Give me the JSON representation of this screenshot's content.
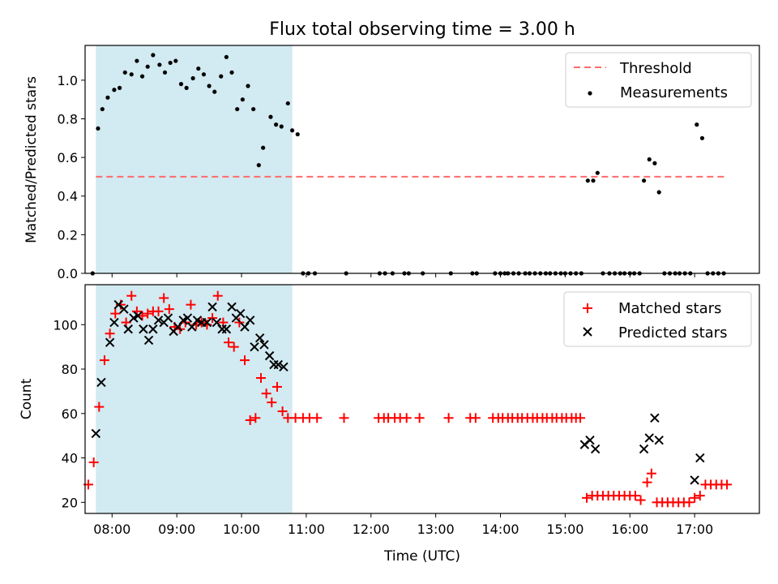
{
  "figure": {
    "title": "Flux total observing time = 3.00 h",
    "xlabel": "Time (UTC)",
    "x_ticks": [
      "08:00",
      "09:00",
      "10:00",
      "11:00",
      "12:00",
      "13:00",
      "14:00",
      "15:00",
      "16:00",
      "17:00"
    ]
  },
  "chart_data": [
    {
      "type": "scatter",
      "ylabel": "Matched/Predicted stars",
      "xlim": [
        "07:35",
        "18:00"
      ],
      "ylim": [
        0,
        1.18
      ],
      "y_ticks": [
        "0.0",
        "0.2",
        "0.4",
        "0.6",
        "0.8",
        "1.0"
      ],
      "shaded_region": {
        "x0": "07:45",
        "x1": "10:47",
        "color": "#add8e6"
      },
      "threshold": {
        "name": "Threshold",
        "y": 0.5,
        "x0": "07:45",
        "x1": "17:30",
        "color": "#ff6b6b",
        "style": "dashed"
      },
      "legend": {
        "placement": "top-right",
        "entries": [
          "Threshold",
          "Measurements"
        ]
      },
      "series": [
        {
          "name": "Measurements",
          "marker": "dot",
          "color": "#000000",
          "points": [
            [
              "07:42",
              0.0
            ],
            [
              "07:47",
              0.75
            ],
            [
              "07:51",
              0.85
            ],
            [
              "07:56",
              0.91
            ],
            [
              "08:02",
              0.95
            ],
            [
              "08:07",
              0.96
            ],
            [
              "08:12",
              1.04
            ],
            [
              "08:18",
              1.03
            ],
            [
              "08:23",
              1.1
            ],
            [
              "08:28",
              1.02
            ],
            [
              "08:33",
              1.07
            ],
            [
              "08:38",
              1.13
            ],
            [
              "08:44",
              1.08
            ],
            [
              "08:49",
              1.04
            ],
            [
              "08:54",
              1.09
            ],
            [
              "08:59",
              1.1
            ],
            [
              "09:04",
              0.98
            ],
            [
              "09:09",
              0.96
            ],
            [
              "09:15",
              1.01
            ],
            [
              "09:20",
              1.06
            ],
            [
              "09:25",
              1.03
            ],
            [
              "09:30",
              0.97
            ],
            [
              "09:35",
              0.94
            ],
            [
              "09:41",
              1.02
            ],
            [
              "09:46",
              1.12
            ],
            [
              "09:51",
              1.04
            ],
            [
              "09:56",
              0.85
            ],
            [
              "10:01",
              0.9
            ],
            [
              "10:06",
              0.97
            ],
            [
              "10:11",
              0.85
            ],
            [
              "10:16",
              0.56
            ],
            [
              "10:20",
              0.65
            ],
            [
              "10:27",
              0.81
            ],
            [
              "10:32",
              0.77
            ],
            [
              "10:37",
              0.76
            ],
            [
              "10:43",
              0.88
            ],
            [
              "10:47",
              0.74
            ],
            [
              "10:52",
              0.72
            ],
            [
              "10:57",
              0.0
            ],
            [
              "11:02",
              0.0
            ],
            [
              "11:08",
              0.0
            ],
            [
              "11:37",
              0.0
            ],
            [
              "12:08",
              0.0
            ],
            [
              "12:13",
              0.0
            ],
            [
              "12:20",
              0.0
            ],
            [
              "12:31",
              0.0
            ],
            [
              "12:35",
              0.0
            ],
            [
              "12:48",
              0.0
            ],
            [
              "13:14",
              0.0
            ],
            [
              "13:34",
              0.0
            ],
            [
              "13:38",
              0.0
            ],
            [
              "13:55",
              0.0
            ],
            [
              "14:00",
              0.0
            ],
            [
              "14:04",
              0.0
            ],
            [
              "14:07",
              0.0
            ],
            [
              "14:12",
              0.0
            ],
            [
              "14:17",
              0.0
            ],
            [
              "14:23",
              0.0
            ],
            [
              "14:27",
              0.0
            ],
            [
              "14:32",
              0.0
            ],
            [
              "14:37",
              0.0
            ],
            [
              "14:42",
              0.0
            ],
            [
              "14:46",
              0.0
            ],
            [
              "14:51",
              0.0
            ],
            [
              "14:56",
              0.0
            ],
            [
              "15:00",
              0.0
            ],
            [
              "15:05",
              0.0
            ],
            [
              "15:10",
              0.0
            ],
            [
              "15:15",
              0.0
            ],
            [
              "15:21",
              0.48
            ],
            [
              "15:26",
              0.48
            ],
            [
              "15:30",
              0.52
            ],
            [
              "15:35",
              0.0
            ],
            [
              "15:41",
              0.0
            ],
            [
              "15:46",
              0.0
            ],
            [
              "15:51",
              0.0
            ],
            [
              "15:55",
              0.0
            ],
            [
              "16:00",
              0.0
            ],
            [
              "16:04",
              0.0
            ],
            [
              "16:09",
              0.0
            ],
            [
              "16:13",
              0.48
            ],
            [
              "16:18",
              0.59
            ],
            [
              "16:23",
              0.57
            ],
            [
              "16:27",
              0.42
            ],
            [
              "16:32",
              0.0
            ],
            [
              "16:37",
              0.0
            ],
            [
              "16:42",
              0.0
            ],
            [
              "16:46",
              0.0
            ],
            [
              "16:51",
              0.0
            ],
            [
              "16:56",
              0.0
            ],
            [
              "17:02",
              0.77
            ],
            [
              "17:07",
              0.7
            ],
            [
              "17:12",
              0.0
            ],
            [
              "17:17",
              0.0
            ],
            [
              "17:22",
              0.0
            ],
            [
              "17:27",
              0.0
            ]
          ]
        }
      ]
    },
    {
      "type": "scatter",
      "ylabel": "Count",
      "xlabel": "Time (UTC)",
      "xlim": [
        "07:35",
        "18:00"
      ],
      "ylim": [
        15,
        118
      ],
      "y_ticks": [
        "20",
        "40",
        "60",
        "80",
        "100"
      ],
      "shaded_region": {
        "x0": "07:45",
        "x1": "10:47",
        "color": "#add8e6"
      },
      "legend": {
        "placement": "top-right",
        "entries": [
          "Matched stars",
          "Predicted stars"
        ]
      },
      "series": [
        {
          "name": "Matched stars",
          "marker": "plus",
          "color": "#ff0000",
          "points": [
            [
              "07:38",
              28
            ],
            [
              "07:43",
              38
            ],
            [
              "07:48",
              63
            ],
            [
              "07:53",
              84
            ],
            [
              "07:58",
              96
            ],
            [
              "08:03",
              105
            ],
            [
              "08:08",
              109
            ],
            [
              "08:13",
              101
            ],
            [
              "08:18",
              113
            ],
            [
              "08:23",
              106
            ],
            [
              "08:28",
              104
            ],
            [
              "08:33",
              105
            ],
            [
              "08:38",
              106
            ],
            [
              "08:43",
              106
            ],
            [
              "08:48",
              112
            ],
            [
              "08:53",
              107
            ],
            [
              "08:58",
              99
            ],
            [
              "09:03",
              98
            ],
            [
              "09:08",
              101
            ],
            [
              "09:13",
              109
            ],
            [
              "09:18",
              100
            ],
            [
              "09:23",
              101
            ],
            [
              "09:28",
              100
            ],
            [
              "09:33",
              103
            ],
            [
              "09:38",
              113
            ],
            [
              "09:43",
              101
            ],
            [
              "09:48",
              92
            ],
            [
              "09:53",
              90
            ],
            [
              "09:58",
              101
            ],
            [
              "10:03",
              84
            ],
            [
              "10:08",
              57
            ],
            [
              "10:13",
              58
            ],
            [
              "10:18",
              76
            ],
            [
              "10:23",
              69
            ],
            [
              "10:28",
              65
            ],
            [
              "10:33",
              72
            ],
            [
              "10:38",
              61
            ],
            [
              "10:43",
              58
            ],
            [
              "10:50",
              58
            ],
            [
              "10:57",
              58
            ],
            [
              "11:03",
              58
            ],
            [
              "11:10",
              58
            ],
            [
              "11:35",
              58
            ],
            [
              "12:07",
              58
            ],
            [
              "12:12",
              58
            ],
            [
              "12:16",
              58
            ],
            [
              "12:22",
              58
            ],
            [
              "12:27",
              58
            ],
            [
              "12:33",
              58
            ],
            [
              "12:45",
              58
            ],
            [
              "13:12",
              58
            ],
            [
              "13:32",
              58
            ],
            [
              "13:37",
              58
            ],
            [
              "13:53",
              58
            ],
            [
              "13:58",
              58
            ],
            [
              "14:02",
              58
            ],
            [
              "14:07",
              58
            ],
            [
              "14:11",
              58
            ],
            [
              "14:16",
              58
            ],
            [
              "14:20",
              58
            ],
            [
              "14:25",
              58
            ],
            [
              "14:30",
              58
            ],
            [
              "14:34",
              58
            ],
            [
              "14:39",
              58
            ],
            [
              "14:43",
              58
            ],
            [
              "14:48",
              58
            ],
            [
              "14:52",
              58
            ],
            [
              "14:57",
              58
            ],
            [
              "15:01",
              58
            ],
            [
              "15:06",
              58
            ],
            [
              "15:10",
              58
            ],
            [
              "15:14",
              58
            ],
            [
              "15:20",
              22
            ],
            [
              "15:25",
              23
            ],
            [
              "15:30",
              23
            ],
            [
              "15:35",
              23
            ],
            [
              "15:40",
              23
            ],
            [
              "15:45",
              23
            ],
            [
              "15:50",
              23
            ],
            [
              "15:55",
              23
            ],
            [
              "16:00",
              23
            ],
            [
              "16:05",
              23
            ],
            [
              "16:10",
              21
            ],
            [
              "16:16",
              29
            ],
            [
              "16:20",
              33
            ],
            [
              "16:25",
              20
            ],
            [
              "16:30",
              20
            ],
            [
              "16:35",
              20
            ],
            [
              "16:40",
              20
            ],
            [
              "16:45",
              20
            ],
            [
              "16:50",
              20
            ],
            [
              "16:55",
              20
            ],
            [
              "17:00",
              22
            ],
            [
              "17:05",
              23
            ],
            [
              "17:10",
              28
            ],
            [
              "17:15",
              28
            ],
            [
              "17:20",
              28
            ],
            [
              "17:25",
              28
            ],
            [
              "17:30",
              28
            ]
          ]
        },
        {
          "name": "Predicted stars",
          "marker": "x",
          "color": "#000000",
          "points": [
            [
              "07:45",
              51
            ],
            [
              "07:50",
              74
            ],
            [
              "07:58",
              92
            ],
            [
              "08:02",
              101
            ],
            [
              "08:06",
              109
            ],
            [
              "08:11",
              107
            ],
            [
              "08:15",
              98
            ],
            [
              "08:20",
              103
            ],
            [
              "08:24",
              104
            ],
            [
              "08:29",
              98
            ],
            [
              "08:34",
              93
            ],
            [
              "08:38",
              98
            ],
            [
              "08:43",
              102
            ],
            [
              "08:48",
              101
            ],
            [
              "08:52",
              103
            ],
            [
              "08:57",
              97
            ],
            [
              "09:01",
              99
            ],
            [
              "09:06",
              102
            ],
            [
              "09:10",
              103
            ],
            [
              "09:14",
              99
            ],
            [
              "09:19",
              102
            ],
            [
              "09:23",
              101
            ],
            [
              "09:28",
              101
            ],
            [
              "09:33",
              108
            ],
            [
              "09:37",
              101
            ],
            [
              "09:42",
              98
            ],
            [
              "09:46",
              98
            ],
            [
              "09:51",
              108
            ],
            [
              "09:55",
              103
            ],
            [
              "09:59",
              105
            ],
            [
              "10:03",
              99
            ],
            [
              "10:08",
              102
            ],
            [
              "10:12",
              90
            ],
            [
              "10:17",
              94
            ],
            [
              "10:21",
              91
            ],
            [
              "10:26",
              86
            ],
            [
              "10:30",
              82
            ],
            [
              "10:34",
              82
            ],
            [
              "10:39",
              81
            ],
            [
              "15:18",
              46
            ],
            [
              "15:23",
              48
            ],
            [
              "15:28",
              44
            ],
            [
              "16:13",
              44
            ],
            [
              "16:18",
              49
            ],
            [
              "16:23",
              58
            ],
            [
              "16:27",
              48
            ],
            [
              "17:00",
              30
            ],
            [
              "17:05",
              40
            ]
          ]
        }
      ]
    }
  ]
}
